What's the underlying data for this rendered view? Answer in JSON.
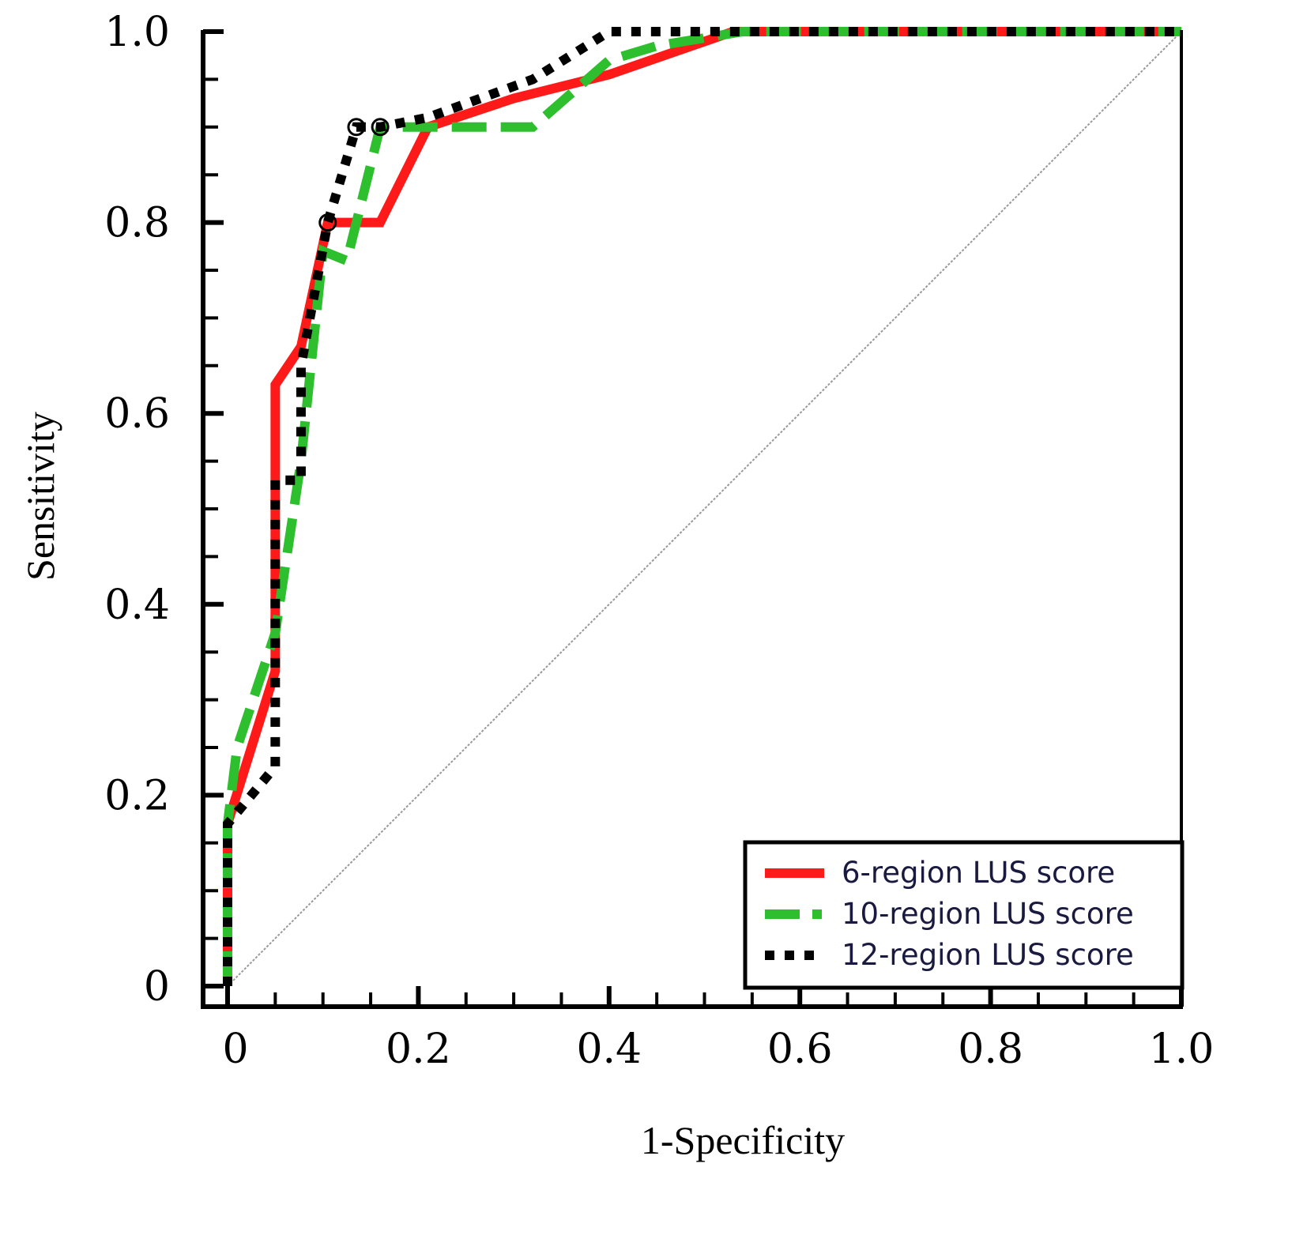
{
  "chart_data": {
    "type": "line",
    "title": "",
    "xlabel": "1-Specificity",
    "ylabel": "Sensitivity",
    "xlim": [
      0,
      1
    ],
    "ylim": [
      0,
      1
    ],
    "xticks": [
      "0",
      "0.2",
      "0.4",
      "0.6",
      "0.8",
      "1.0"
    ],
    "yticks": [
      "0",
      "0.2",
      "0.4",
      "0.6",
      "0.8",
      "1.0"
    ],
    "xtick_values": [
      0,
      0.2,
      0.4,
      0.6,
      0.8,
      1.0
    ],
    "ytick_values": [
      0,
      0.2,
      0.4,
      0.6,
      0.8,
      1.0
    ],
    "grid": false,
    "legend_position": "bottom-right",
    "reference_line": {
      "name": "chance diagonal",
      "x": [
        0,
        1
      ],
      "y": [
        0,
        1
      ],
      "color": "#999999"
    },
    "series": [
      {
        "name": "6-region LUS score",
        "style": "solid",
        "color": "#ff1a1a",
        "x": [
          0,
          0,
          0.05,
          0.05,
          0.077,
          0.105,
          0.16,
          0.21,
          0.3,
          0.4,
          0.53,
          1.0
        ],
        "y": [
          0,
          0.17,
          0.33,
          0.63,
          0.67,
          0.8,
          0.8,
          0.9,
          0.93,
          0.955,
          1.0,
          1.0
        ]
      },
      {
        "name": "10-region LUS score",
        "style": "dashed",
        "color": "#2dbf2d",
        "x": [
          0,
          0,
          0.01,
          0.05,
          0.077,
          0.1,
          0.125,
          0.16,
          0.21,
          0.32,
          0.4,
          0.45,
          0.54,
          1.0
        ],
        "y": [
          0,
          0.17,
          0.25,
          0.37,
          0.55,
          0.77,
          0.76,
          0.9,
          0.9,
          0.9,
          0.97,
          0.985,
          1.0,
          1.0
        ]
      },
      {
        "name": "12-region LUS score",
        "style": "dotted",
        "color": "#000000",
        "x": [
          0,
          0,
          0.05,
          0.05,
          0.077,
          0.077,
          0.105,
          0.135,
          0.16,
          0.21,
          0.32,
          0.4,
          1.0
        ],
        "y": [
          0,
          0.17,
          0.23,
          0.53,
          0.53,
          0.65,
          0.8,
          0.9,
          0.9,
          0.91,
          0.95,
          1.0,
          1.0
        ]
      }
    ],
    "markers": [
      {
        "series": "12-region LUS score",
        "x": 0.105,
        "y": 0.8
      },
      {
        "series": "12-region LUS score",
        "x": 0.135,
        "y": 0.9
      },
      {
        "series": "12-region LUS score",
        "x": 0.16,
        "y": 0.9
      }
    ]
  }
}
